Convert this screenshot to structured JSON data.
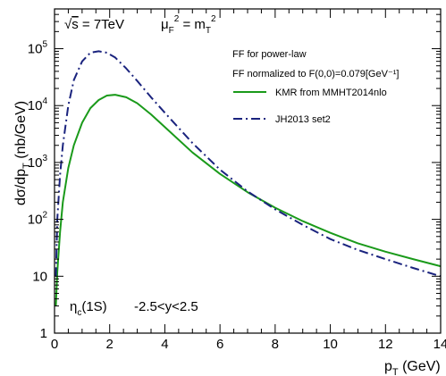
{
  "chart_data": {
    "type": "line",
    "title": "",
    "xlabel": "p_T (GeV)",
    "ylabel": "dσ/dp_T (nb/GeV)",
    "xlim": [
      0,
      14
    ],
    "ylim": [
      1,
      500000
    ],
    "yscale": "log",
    "grid": false,
    "legend_position": "top-right",
    "x_ticks": [
      {
        "value": 0,
        "label": "0"
      },
      {
        "value": 2,
        "label": "2"
      },
      {
        "value": 4,
        "label": "4"
      },
      {
        "value": 6,
        "label": "6"
      },
      {
        "value": 8,
        "label": "8"
      },
      {
        "value": 10,
        "label": "10"
      },
      {
        "value": 12,
        "label": "12"
      },
      {
        "value": 14,
        "label": "14"
      }
    ],
    "y_ticks": [
      {
        "value": 1,
        "base": "1",
        "exp": ""
      },
      {
        "value": 10,
        "base": "10",
        "exp": ""
      },
      {
        "value": 100,
        "base": "10",
        "exp": "2"
      },
      {
        "value": 1000,
        "base": "10",
        "exp": "3"
      },
      {
        "value": 10000,
        "base": "10",
        "exp": "4"
      },
      {
        "value": 100000,
        "base": "10",
        "exp": "5"
      }
    ],
    "annotations": {
      "energy": "√s = 7TeV",
      "scale": "μ_F^2 = m_T^2",
      "state": "η_c(1S)",
      "rapidity": "-2.5<y<2.5",
      "legend_header_1": "FF for power-law",
      "legend_header_2": "FF normalized to F(0,0)=0.079[GeV⁻¹]"
    },
    "series": [
      {
        "name": "KMR from MMHT2014nlo",
        "color": "#1a9a1a",
        "style": "solid",
        "points": [
          [
            0.05,
            3
          ],
          [
            0.1,
            12
          ],
          [
            0.2,
            60
          ],
          [
            0.3,
            200
          ],
          [
            0.5,
            800
          ],
          [
            0.7,
            2000
          ],
          [
            1.0,
            5000
          ],
          [
            1.3,
            9000
          ],
          [
            1.6,
            12500
          ],
          [
            1.9,
            15000
          ],
          [
            2.2,
            15500
          ],
          [
            2.6,
            14000
          ],
          [
            3.0,
            11000
          ],
          [
            3.5,
            7000
          ],
          [
            4.0,
            4200
          ],
          [
            5.0,
            1500
          ],
          [
            6.0,
            630
          ],
          [
            7.0,
            300
          ],
          [
            8.0,
            160
          ],
          [
            9.0,
            93
          ],
          [
            10.0,
            58
          ],
          [
            11.0,
            38
          ],
          [
            12.0,
            27
          ],
          [
            13.0,
            20
          ],
          [
            14.0,
            15
          ]
        ]
      },
      {
        "name": "JH2013 set2",
        "color": "#1a237e",
        "style": "dashdot",
        "points": [
          [
            0.05,
            10
          ],
          [
            0.1,
            100
          ],
          [
            0.2,
            600
          ],
          [
            0.3,
            2000
          ],
          [
            0.5,
            10000
          ],
          [
            0.7,
            28000
          ],
          [
            1.0,
            60000
          ],
          [
            1.3,
            85000
          ],
          [
            1.6,
            90000
          ],
          [
            1.9,
            85000
          ],
          [
            2.2,
            70000
          ],
          [
            2.6,
            45000
          ],
          [
            3.0,
            27000
          ],
          [
            3.5,
            14000
          ],
          [
            4.0,
            7500
          ],
          [
            5.0,
            2200
          ],
          [
            6.0,
            750
          ],
          [
            7.0,
            310
          ],
          [
            8.0,
            150
          ],
          [
            9.0,
            80
          ],
          [
            10.0,
            45
          ],
          [
            11.0,
            29
          ],
          [
            12.0,
            20
          ],
          [
            13.0,
            14
          ],
          [
            14.0,
            10
          ]
        ]
      }
    ]
  }
}
